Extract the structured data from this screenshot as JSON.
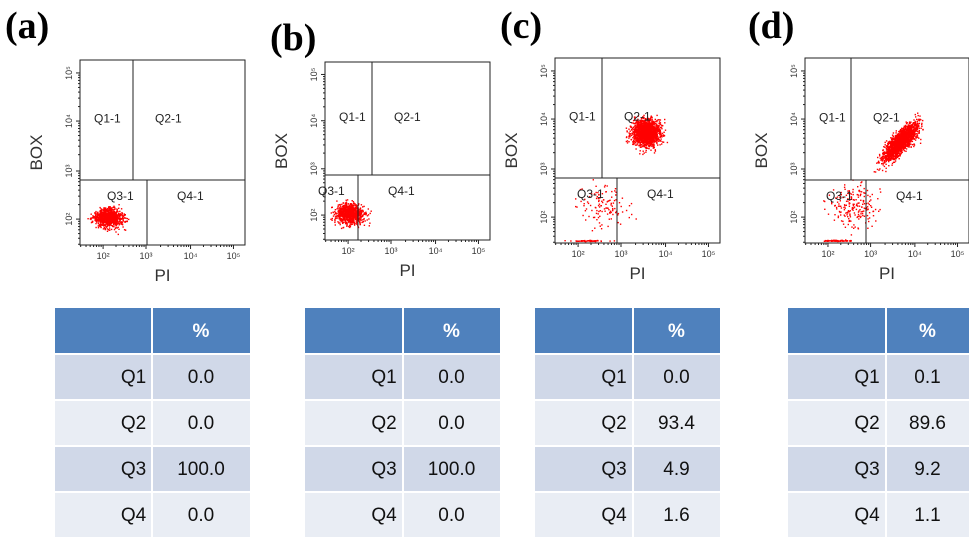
{
  "panels": [
    {
      "label": "(a)",
      "y_axis": "BOX",
      "x_axis": "PI",
      "quadrants": [
        "Q1-1",
        "Q2-1",
        "Q3-1",
        "Q4-1"
      ],
      "xticks": [
        "10²",
        "10³",
        "10⁴",
        "10⁵"
      ],
      "yticks": [
        "10²",
        "10³",
        "10⁴",
        "10⁵"
      ],
      "table": {
        "header": "%",
        "rows": [
          [
            "Q1",
            "0.0"
          ],
          [
            "Q2",
            "0.0"
          ],
          [
            "Q3",
            "100.0"
          ],
          [
            "Q4",
            "0.0"
          ]
        ]
      }
    },
    {
      "label": "(b)",
      "y_axis": "BOX",
      "x_axis": "PI",
      "quadrants": [
        "Q1-1",
        "Q2-1",
        "Q3-1",
        "Q4-1"
      ],
      "xticks": [
        "10²",
        "10³",
        "10⁴",
        "10⁵"
      ],
      "yticks": [
        "10²",
        "10³",
        "10⁴",
        "10⁵"
      ],
      "table": {
        "header": "%",
        "rows": [
          [
            "Q1",
            "0.0"
          ],
          [
            "Q2",
            "0.0"
          ],
          [
            "Q3",
            "100.0"
          ],
          [
            "Q4",
            "0.0"
          ]
        ]
      }
    },
    {
      "label": "(c)",
      "y_axis": "BOX",
      "x_axis": "PI",
      "quadrants": [
        "Q1-1",
        "Q2-1",
        "Q3-1",
        "Q4-1"
      ],
      "xticks": [
        "10²",
        "10³",
        "10⁴",
        "10⁵"
      ],
      "yticks": [
        "10²",
        "10³",
        "10⁴",
        "10⁵"
      ],
      "table": {
        "header": "%",
        "rows": [
          [
            "Q1",
            "0.0"
          ],
          [
            "Q2",
            "93.4"
          ],
          [
            "Q3",
            "4.9"
          ],
          [
            "Q4",
            "1.6"
          ]
        ]
      }
    },
    {
      "label": "(d)",
      "y_axis": "BOX",
      "x_axis": "PI",
      "quadrants": [
        "Q1-1",
        "Q2-1",
        "Q3-1",
        "Q4-1"
      ],
      "xticks": [
        "10²",
        "10³",
        "10⁴",
        "10⁵"
      ],
      "yticks": [
        "10²",
        "10³",
        "10⁴",
        "10⁵"
      ],
      "table": {
        "header": "%",
        "rows": [
          [
            "Q1",
            "0.1"
          ],
          [
            "Q2",
            "89.6"
          ],
          [
            "Q3",
            "9.2"
          ],
          [
            "Q4",
            "1.1"
          ]
        ]
      }
    }
  ]
}
